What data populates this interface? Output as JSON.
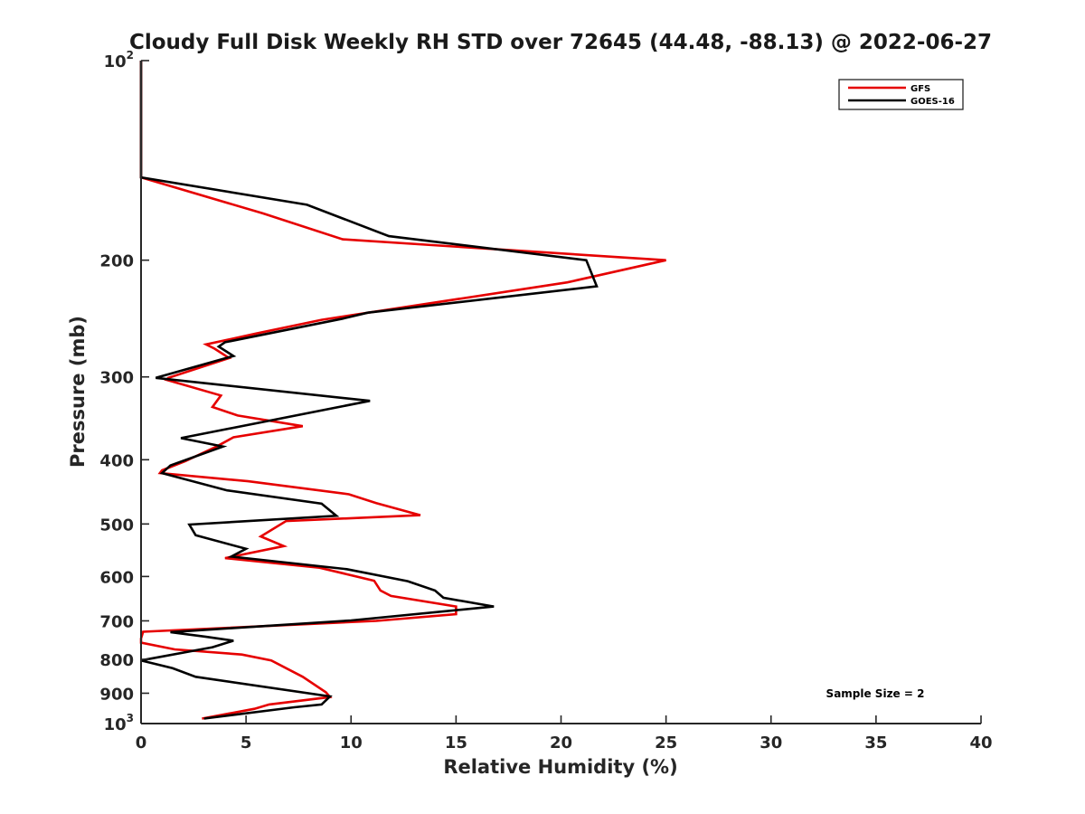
{
  "chart_data": {
    "type": "line",
    "title": "Cloudy Full Disk Weekly RH STD over 72645 (44.48, -88.13) @ 2022-06-27",
    "xlabel": "Relative Humidity (%)",
    "ylabel": "Pressure (mb)",
    "xlim": [
      0,
      40
    ],
    "ylim": [
      100,
      1000
    ],
    "y_scale": "log",
    "y_reversed": true,
    "x_ticks": [
      "0",
      "5",
      "10",
      "15",
      "20",
      "25",
      "30",
      "35",
      "40"
    ],
    "y_ticks": [
      {
        "value": 100,
        "base": "10",
        "exp": "2"
      },
      {
        "value": 200,
        "label": "200"
      },
      {
        "value": 300,
        "label": "300"
      },
      {
        "value": 400,
        "label": "400"
      },
      {
        "value": 500,
        "label": "500"
      },
      {
        "value": 600,
        "label": "600"
      },
      {
        "value": 700,
        "label": "700"
      },
      {
        "value": 800,
        "label": "800"
      },
      {
        "value": 900,
        "label": "900"
      },
      {
        "value": 1000,
        "base": "10",
        "exp": "3"
      }
    ],
    "grid": false,
    "legend_position": "top-right",
    "annotation": "Sample Size = 2",
    "series": [
      {
        "name": "GFS",
        "color": "#e60000",
        "points": [
          [
            0,
            100
          ],
          [
            0,
            150
          ],
          [
            5.8,
            170
          ],
          [
            9.6,
            186
          ],
          [
            25.0,
            200
          ],
          [
            20.3,
            216
          ],
          [
            8.6,
            246
          ],
          [
            5.5,
            258
          ],
          [
            3.1,
            268
          ],
          [
            3.5,
            272
          ],
          [
            4.2,
            281
          ],
          [
            1.3,
            301
          ],
          [
            1.2,
            303
          ],
          [
            3.8,
            320
          ],
          [
            3.4,
            333
          ],
          [
            4.6,
            343
          ],
          [
            7.7,
            356
          ],
          [
            4.4,
            370
          ],
          [
            3.6,
            382
          ],
          [
            2.1,
            402
          ],
          [
            1.0,
            415
          ],
          [
            0.9,
            419
          ],
          [
            5.1,
            431
          ],
          [
            9.9,
            451
          ],
          [
            11.2,
            465
          ],
          [
            13.3,
            485
          ],
          [
            6.9,
            495
          ],
          [
            5.7,
            522
          ],
          [
            6.8,
            540
          ],
          [
            4.0,
            563
          ],
          [
            8.5,
            582
          ],
          [
            11.1,
            609
          ],
          [
            11.4,
            630
          ],
          [
            11.9,
            642
          ],
          [
            15.0,
            666
          ],
          [
            15.0,
            684
          ],
          [
            11.2,
            700
          ],
          [
            0.1,
            727
          ],
          [
            0.0,
            744
          ],
          [
            0.0,
            755
          ],
          [
            1.6,
            773
          ],
          [
            4.8,
            787
          ],
          [
            6.2,
            803
          ],
          [
            7.7,
            850
          ],
          [
            8.8,
            897
          ],
          [
            9.0,
            912
          ],
          [
            6.1,
            936
          ],
          [
            5.4,
            950
          ],
          [
            2.9,
            983
          ]
        ]
      },
      {
        "name": "GOES-16",
        "color": "#000000",
        "points": [
          [
            0,
            100
          ],
          [
            0,
            150
          ],
          [
            7.9,
            165
          ],
          [
            11.8,
            184
          ],
          [
            21.2,
            200
          ],
          [
            21.7,
            219
          ],
          [
            10.8,
            240
          ],
          [
            9.6,
            245
          ],
          [
            4.0,
            266
          ],
          [
            3.7,
            270
          ],
          [
            4.4,
            279
          ],
          [
            0.7,
            301
          ],
          [
            10.9,
            326
          ],
          [
            1.9,
            371
          ],
          [
            3.9,
            382
          ],
          [
            1.4,
            408
          ],
          [
            1.0,
            419
          ],
          [
            4.1,
            445
          ],
          [
            8.6,
            466
          ],
          [
            9.3,
            486
          ],
          [
            2.3,
            501
          ],
          [
            2.6,
            520
          ],
          [
            5.0,
            545
          ],
          [
            4.3,
            560
          ],
          [
            9.8,
            585
          ],
          [
            12.7,
            610
          ],
          [
            14.0,
            630
          ],
          [
            14.4,
            646
          ],
          [
            16.8,
            666
          ],
          [
            10.0,
            699
          ],
          [
            1.4,
            728
          ],
          [
            3.1,
            740
          ],
          [
            4.4,
            750
          ],
          [
            3.4,
            767
          ],
          [
            0.0,
            803
          ],
          [
            1.5,
            825
          ],
          [
            2.6,
            850
          ],
          [
            9.0,
            910
          ],
          [
            8.6,
            936
          ],
          [
            7.3,
            945
          ],
          [
            3.0,
            983
          ]
        ]
      }
    ]
  }
}
